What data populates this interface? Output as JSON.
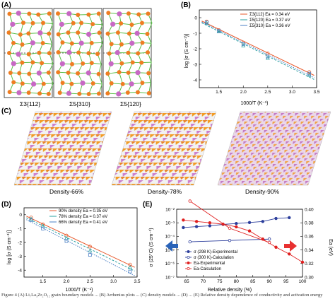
{
  "panels": {
    "A": {
      "label": "(A)",
      "captions": [
        "Σ3{112}",
        "Σ5{310}",
        "Σ5{120}"
      ]
    },
    "B": {
      "label": "(B)",
      "ylabel": "log [σ (S cm⁻¹)]",
      "xlabel": "1000/T (K⁻¹)"
    },
    "C": {
      "label": "(C)",
      "captions": [
        "Density-66%",
        "Density-78%",
        "Density-90%"
      ]
    },
    "D": {
      "label": "(D)",
      "ylabel": "log [σ (S cm⁻¹)]",
      "xlabel": "1000/T (K⁻¹)"
    },
    "E": {
      "label": "(E)",
      "ylabel_left": "σ (25°C) (S cm⁻¹)",
      "ylabel_right": "Ea (eV)",
      "xlabel": "Relative density (%)"
    }
  },
  "chart_data": [
    {
      "panel": "B",
      "type": "scatter",
      "xlabel": "1000/T (K⁻¹)",
      "ylabel": "log [σ (S cm⁻¹)]",
      "xlim": [
        1.1,
        3.5
      ],
      "ylim": [
        -4.5,
        0.5
      ],
      "xticks": [
        "1.5",
        "2.0",
        "2.5",
        "3.0",
        "3.5"
      ],
      "yticks": [
        "0",
        "-1",
        "-2",
        "-3",
        "-4"
      ],
      "legend_position": "top-right",
      "series": [
        {
          "name": "Σ3{112}",
          "ea": "Ea = 0.34 eV",
          "color": "#e8592b",
          "marker": "circle",
          "x": [
            1.25,
            1.5,
            2.0,
            2.5,
            3.35
          ],
          "y": [
            -0.25,
            -0.8,
            -1.6,
            -2.3,
            -3.5
          ]
        },
        {
          "name": "Σ5{120}",
          "ea": "Ea = 0.37 eV",
          "color": "#2aa1a1",
          "marker": "triangle",
          "x": [
            1.25,
            1.5,
            2.0,
            2.5,
            3.35
          ],
          "y": [
            -0.35,
            -0.9,
            -1.8,
            -2.6,
            -3.7
          ]
        },
        {
          "name": "Σ5{310}",
          "ea": "Ea = 0.36 eV",
          "color": "#4a7fc4",
          "marker": "square",
          "x": [
            1.25,
            1.5,
            2.0,
            2.5,
            3.35
          ],
          "y": [
            -0.3,
            -0.85,
            -1.7,
            -2.5,
            -3.6
          ]
        }
      ]
    },
    {
      "panel": "D",
      "type": "scatter",
      "xlabel": "1000/T (K⁻¹)",
      "ylabel": "log [σ (S cm⁻¹)]",
      "xlim": [
        1.1,
        3.5
      ],
      "ylim": [
        -4.5,
        0.5
      ],
      "xticks": [
        "1.5",
        "2.0",
        "2.5",
        "3.0",
        "3.5"
      ],
      "yticks": [
        "0",
        "-1",
        "-2",
        "-3",
        "-4"
      ],
      "legend_position": "top-right",
      "series": [
        {
          "name": "90% density",
          "ea": "Ea = 0.35 eV",
          "color": "#e8592b",
          "marker": "circle",
          "x": [
            1.25,
            1.5,
            2.0,
            2.5,
            3.35
          ],
          "y": [
            -0.2,
            -0.7,
            -1.5,
            -2.3,
            -3.6
          ]
        },
        {
          "name": "78% density",
          "ea": "Ea = 0.37 eV",
          "color": "#2aa1a1",
          "marker": "triangle",
          "x": [
            1.25,
            1.5,
            2.0,
            2.5,
            3.35
          ],
          "y": [
            -0.3,
            -0.8,
            -1.7,
            -2.6,
            -3.8
          ]
        },
        {
          "name": "66% density",
          "ea": "Ea = 0.41 eV",
          "color": "#4a7fc4",
          "marker": "square",
          "x": [
            1.25,
            1.5,
            2.0,
            2.5,
            3.35
          ],
          "y": [
            -0.4,
            -1.0,
            -1.9,
            -2.9,
            -4.1
          ]
        }
      ]
    },
    {
      "panel": "E",
      "type": "line",
      "xlabel": "Relative density (%)",
      "ylabel": "σ (25°C) (S cm⁻¹)",
      "ylabel_right": "Ea (eV)",
      "xlim": [
        62,
        100
      ],
      "ylim_log10": [
        -7,
        -2
      ],
      "ylim_right": [
        0.3,
        0.4
      ],
      "xticks": [
        "65",
        "70",
        "75",
        "80",
        "85",
        "90",
        "95",
        "100"
      ],
      "yticks_left": [
        "10⁻²",
        "10⁻³",
        "10⁻⁴",
        "10⁻⁵",
        "10⁻⁶",
        "10⁻⁷"
      ],
      "yticks_right": [
        "0.40",
        "0.38",
        "0.36",
        "0.34",
        "0.32",
        "0.30"
      ],
      "series": [
        {
          "name": "σ (298 K)-Experimental",
          "axis": "left",
          "color": "#2c3e9c",
          "marker": "filled",
          "x": [
            64,
            68,
            72,
            76,
            80,
            84,
            88,
            92,
            96
          ],
          "log10_y": [
            -3.35,
            -3.28,
            -3.22,
            -3.12,
            -3.05,
            -2.98,
            -2.9,
            -2.68,
            -2.62
          ]
        },
        {
          "name": "σ (300 K)-Calculation",
          "axis": "left",
          "color": "#2c3e9c",
          "marker": "open",
          "x": [
            66,
            78,
            90
          ],
          "log10_y": [
            -4.4,
            -4.3,
            -4.2
          ]
        },
        {
          "name": "Ea-Experimental",
          "axis": "right",
          "color": "#e02020",
          "marker": "filled",
          "x": [
            64,
            68,
            72,
            76,
            80,
            84,
            88,
            92,
            96,
            100
          ],
          "y": [
            0.384,
            0.382,
            0.38,
            0.378,
            0.374,
            0.368,
            0.356,
            0.344,
            0.334,
            0.322
          ]
        },
        {
          "name": "Ea-Calculation",
          "axis": "right",
          "color": "#e02020",
          "marker": "open",
          "x": [
            66,
            78,
            90
          ],
          "y": [
            0.412,
            0.372,
            0.351
          ]
        }
      ]
    }
  ],
  "footer": "Figure 4 (A) Li₇La₃Zr₂O₁₂ grain boundary models ... (B) Arrhenius plots ... (C) density models ... (D) ... (E) Relative density dependence of conductivity and activation energy"
}
